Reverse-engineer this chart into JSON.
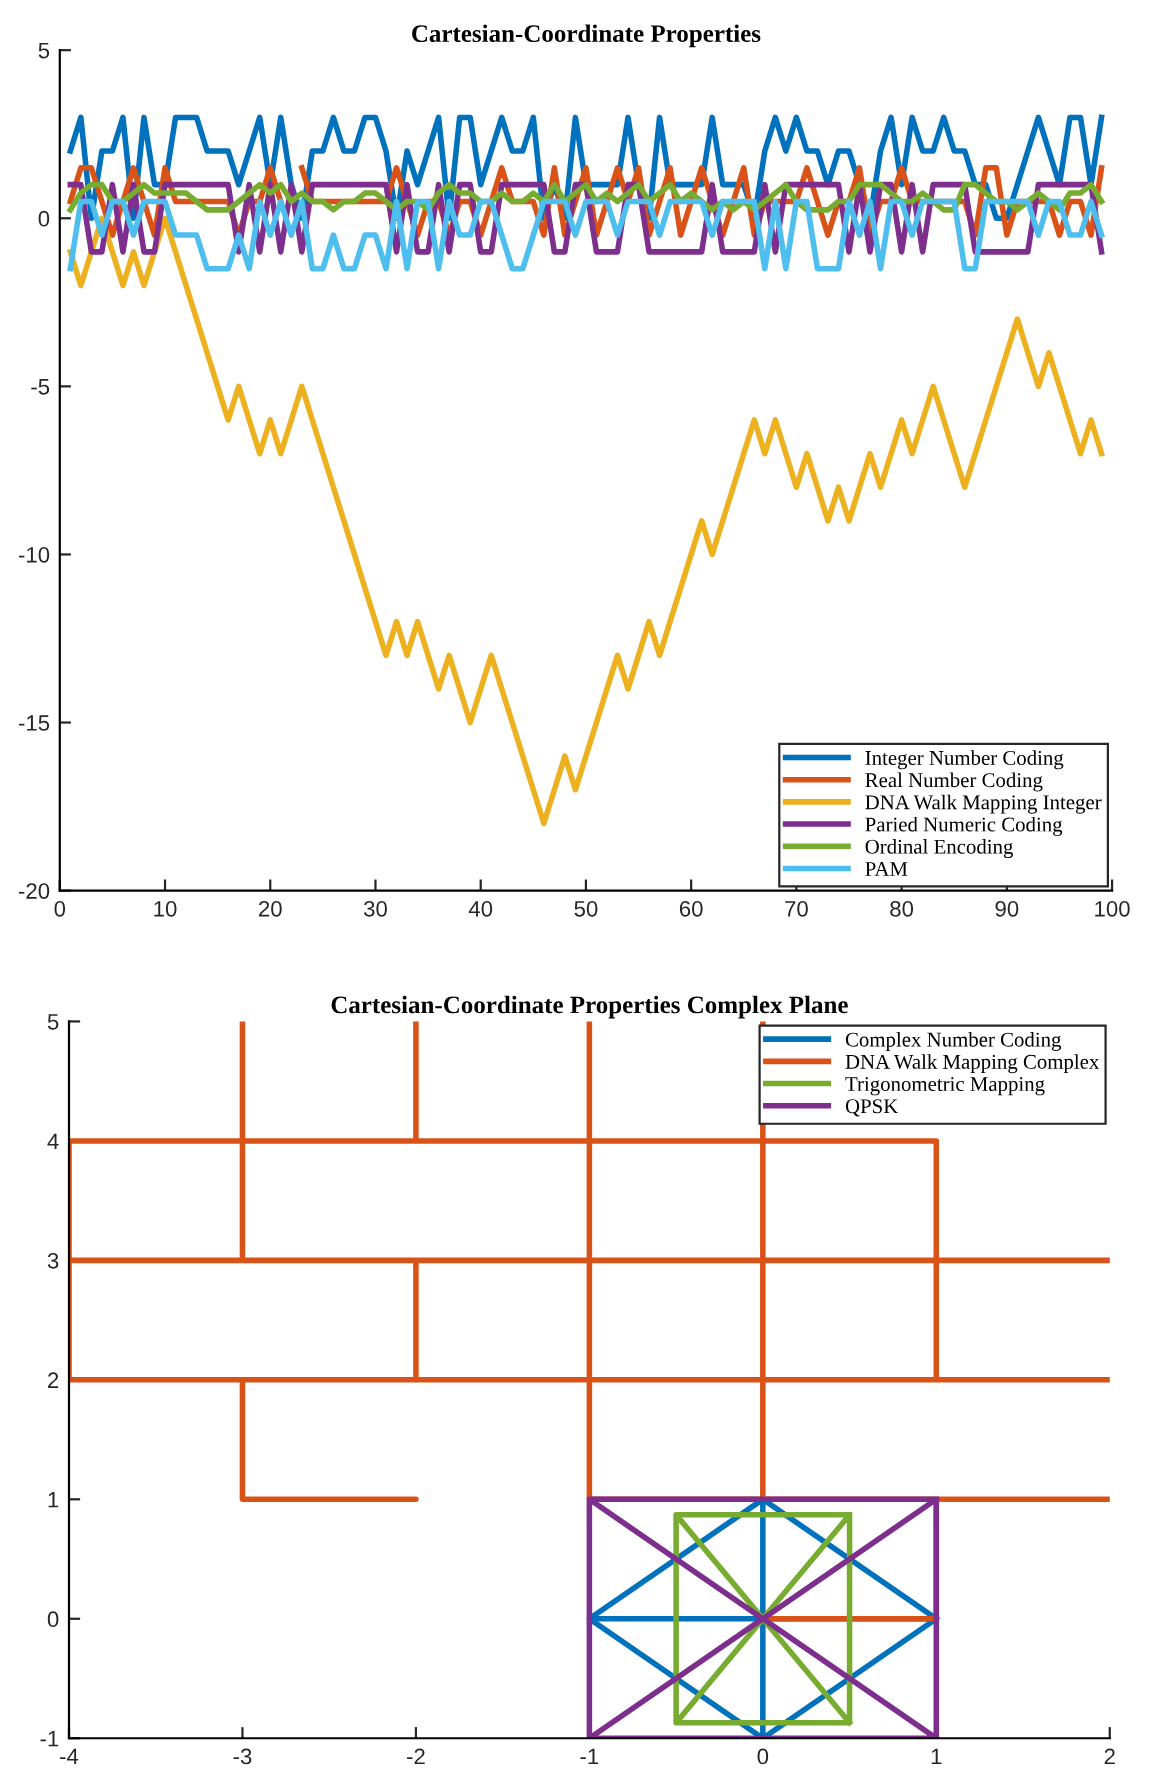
{
  "chart_data": [
    {
      "type": "line",
      "title": "Cartesian-Coordinate Properties",
      "x": [
        1,
        2,
        3,
        4,
        5,
        6,
        7,
        8,
        9,
        10,
        11,
        12,
        13,
        14,
        15,
        16,
        17,
        18,
        19,
        20,
        21,
        22,
        23,
        24,
        25,
        26,
        27,
        28,
        29,
        30,
        31,
        32,
        33,
        34,
        35,
        36,
        37,
        38,
        39,
        40,
        41,
        42,
        43,
        44,
        45,
        46,
        47,
        48,
        49,
        50,
        51,
        52,
        53,
        54,
        55,
        56,
        57,
        58,
        59,
        60,
        61,
        62,
        63,
        64,
        65,
        66,
        67,
        68,
        69,
        70,
        71,
        72,
        73,
        74,
        75,
        76,
        77,
        78,
        79,
        80,
        81,
        82,
        83,
        84,
        85,
        86,
        87,
        88,
        89,
        90,
        91,
        92,
        93,
        94,
        95,
        96,
        97,
        98,
        99
      ],
      "xlim": [
        0,
        100
      ],
      "xticks": [
        0,
        10,
        20,
        30,
        40,
        50,
        60,
        70,
        80,
        90,
        100
      ],
      "ylim": [
        -20,
        5
      ],
      "yticks": [
        -20,
        -15,
        -10,
        -5,
        0,
        5
      ],
      "grid": false,
      "legend": "bottom right",
      "line_style": "solid",
      "marker": "none",
      "series": [
        {
          "name": "Integer Number Coding",
          "color": "#0072bd",
          "values": [
            2,
            3,
            0,
            2,
            2,
            3,
            0,
            3,
            1,
            1,
            3,
            3,
            3,
            2,
            2,
            2,
            1,
            2,
            3,
            1,
            3,
            1,
            0,
            2,
            2,
            3,
            2,
            2,
            3,
            3,
            2,
            0,
            2,
            1,
            2,
            3,
            0,
            3,
            3,
            1,
            2,
            3,
            2,
            2,
            3,
            0,
            1,
            0,
            3,
            1,
            1,
            1,
            1,
            3,
            1,
            0,
            3,
            1,
            1,
            1,
            1,
            3,
            1,
            1,
            1,
            0,
            2,
            3,
            2,
            3,
            2,
            2,
            1,
            2,
            2,
            1,
            0,
            2,
            3,
            1,
            3,
            2,
            2,
            3,
            2,
            2,
            1,
            1,
            0,
            0,
            1,
            2,
            3,
            2,
            1,
            3,
            3,
            1,
            3
          ]
        },
        {
          "name": "Real Number Coding",
          "color": "#d95319",
          "values": [
            0.5,
            1.5,
            1.5,
            0.5,
            -0.5,
            0.5,
            1.5,
            0.5,
            -0.5,
            1.5,
            0.5,
            0.5,
            0.5,
            0.5,
            0.5,
            0.5,
            -0.5,
            0.5,
            0.5,
            1.5,
            0.5,
            null,
            1.5,
            0.5,
            0.5,
            0.5,
            0.5,
            0.5,
            0.5,
            0.5,
            0.5,
            1.5,
            0.5,
            -0.5,
            0.5,
            0.5,
            -0.5,
            0.5,
            0.5,
            -0.5,
            0.5,
            1.5,
            0.5,
            0.5,
            0.5,
            -0.5,
            1.5,
            -0.5,
            0.5,
            1.5,
            -0.5,
            0.5,
            1.5,
            0.5,
            1.5,
            -0.5,
            0.5,
            1.5,
            -0.5,
            0.5,
            1.5,
            0.5,
            -0.5,
            0.5,
            1.5,
            -0.5,
            0.5,
            0.5,
            0.5,
            0.5,
            1.5,
            0.5,
            -0.5,
            0.5,
            0.5,
            1.5,
            -0.5,
            0.5,
            0.5,
            1.5,
            0.5,
            0.5,
            0.5,
            0.5,
            0.5,
            0.5,
            -0.5,
            1.5,
            1.5,
            -0.5,
            0.5,
            0.5,
            0.5,
            0.5,
            -0.5,
            0.5,
            0.5,
            -0.5,
            1.5
          ]
        },
        {
          "name": "DNA Walk Mapping Integer",
          "color": "#edb120",
          "values": [
            -1,
            -2,
            -1,
            0,
            -1,
            -2,
            -1,
            -2,
            -1,
            0,
            -1,
            -2,
            -3,
            -4,
            -5,
            -6,
            -5,
            -6,
            -7,
            -6,
            -7,
            -6,
            -5,
            -6,
            -7,
            -8,
            -9,
            -10,
            -11,
            -12,
            -13,
            -12,
            -13,
            -12,
            -13,
            -14,
            -13,
            -14,
            -15,
            -14,
            -13,
            -14,
            -15,
            -16,
            -17,
            -18,
            -17,
            -16,
            -17,
            -16,
            -15,
            -14,
            -13,
            -14,
            -13,
            -12,
            -13,
            -12,
            -11,
            -10,
            -9,
            -10,
            -9,
            -8,
            -7,
            -6,
            -7,
            -6,
            -7,
            -8,
            -7,
            -8,
            -9,
            -8,
            -9,
            -8,
            -7,
            -8,
            -7,
            -6,
            -7,
            -6,
            -5,
            -6,
            -7,
            -8,
            -7,
            -6,
            -5,
            -4,
            -3,
            -4,
            -5,
            -4,
            -5,
            -6,
            -7,
            -6,
            -7
          ]
        },
        {
          "name": "Paried Numeric Coding",
          "color": "#7e2f8e",
          "values": [
            1,
            1,
            -1,
            -1,
            1,
            -1,
            1,
            -1,
            -1,
            1,
            1,
            1,
            1,
            1,
            1,
            1,
            -1,
            1,
            -1,
            1,
            -1,
            1,
            -1,
            1,
            1,
            1,
            1,
            1,
            1,
            1,
            1,
            -1,
            1,
            -1,
            -1,
            1,
            -1,
            1,
            1,
            -1,
            -1,
            1,
            1,
            1,
            1,
            1,
            -1,
            -1,
            1,
            1,
            -1,
            -1,
            -1,
            1,
            1,
            -1,
            -1,
            -1,
            -1,
            -1,
            -1,
            1,
            -1,
            -1,
            -1,
            -1,
            1,
            -1,
            1,
            1,
            1,
            1,
            1,
            1,
            -1,
            1,
            -1,
            1,
            1,
            -1,
            1,
            -1,
            1,
            1,
            1,
            1,
            -1,
            -1,
            -1,
            -1,
            -1,
            -1,
            1,
            1,
            1,
            1,
            1,
            1,
            -1
          ]
        },
        {
          "name": "Ordinal Encoding",
          "color": "#77ac30",
          "values": [
            0.25,
            0.75,
            1,
            1,
            0.5,
            0.5,
            0.75,
            1,
            0.75,
            0.75,
            0.75,
            0.75,
            0.5,
            0.25,
            0.25,
            0.25,
            0.5,
            0.75,
            1,
            0.75,
            1,
            0.5,
            0.75,
            0.5,
            0.5,
            0.25,
            0.5,
            0.5,
            0.75,
            0.75,
            0.5,
            0.25,
            0.5,
            0.5,
            0.25,
            0.75,
            1,
            0.75,
            0.75,
            0.5,
            0.5,
            0.75,
            0.5,
            0.5,
            0.75,
            0.5,
            1,
            0.5,
            0.75,
            1,
            0.5,
            0.75,
            0.5,
            0.75,
            1,
            0.5,
            0.75,
            1,
            0.5,
            0.75,
            0.5,
            0.25,
            0.5,
            0.25,
            0.5,
            0.25,
            0.5,
            0.75,
            1,
            0.5,
            0.25,
            0.25,
            0.25,
            0.5,
            0.5,
            1,
            1,
            1,
            0.75,
            0.5,
            0.5,
            0.75,
            0.5,
            0.25,
            0.25,
            1,
            1,
            0.75,
            0.5,
            0.5,
            0.25,
            0.5,
            0.75,
            0.5,
            0.25,
            0.75,
            0.75,
            1,
            0.5
          ]
        },
        {
          "name": "PAM",
          "color": "#4dbeee",
          "values": [
            -1.5,
            0.5,
            0.5,
            -0.5,
            0.5,
            0.5,
            -0.5,
            0.5,
            0.5,
            0.5,
            -0.5,
            -0.5,
            -0.5,
            -1.5,
            -1.5,
            -1.5,
            -0.5,
            -1.5,
            0.5,
            -0.5,
            0.5,
            -0.5,
            0.5,
            -1.5,
            -1.5,
            -0.5,
            -1.5,
            -1.5,
            -0.5,
            -0.5,
            -1.5,
            0.5,
            -1.5,
            0.5,
            0.5,
            -1.5,
            0.5,
            -0.5,
            -0.5,
            0.5,
            0.5,
            -0.5,
            -1.5,
            -1.5,
            -0.5,
            0.5,
            0.5,
            0.5,
            -0.5,
            0.5,
            0.5,
            0.5,
            -0.5,
            0.5,
            0.5,
            0.5,
            -0.5,
            0.5,
            0.5,
            0.5,
            0.5,
            -0.5,
            0.5,
            0.5,
            0.5,
            0.5,
            -1.5,
            0.5,
            -1.5,
            0.5,
            0.5,
            -1.5,
            -1.5,
            -1.5,
            0.5,
            -0.5,
            0.5,
            -1.5,
            0.5,
            0.5,
            -0.5,
            0.5,
            0.5,
            0.5,
            0.5,
            -1.5,
            -1.5,
            0.5,
            0.5,
            0.5,
            0.5,
            0.5,
            -0.5,
            0.5,
            0.5,
            -0.5,
            -0.5,
            0.5,
            -0.5
          ]
        }
      ]
    },
    {
      "type": "line",
      "title": "Cartesian-Coordinate Properties Complex Plane",
      "xlim": [
        -4,
        2
      ],
      "xticks": [
        -4,
        -3,
        -2,
        -1,
        0,
        1,
        2
      ],
      "ylim": [
        -1,
        5
      ],
      "yticks": [
        -1,
        0,
        1,
        2,
        3,
        4,
        5
      ],
      "grid": false,
      "legend": "top right",
      "line_style": "solid",
      "marker": "none",
      "series": [
        {
          "name": "Complex Number Coding",
          "color": "#0072bd",
          "x": [
            1,
            0,
            -1,
            0,
            1,
            -1,
            0,
            0
          ],
          "values": [
            0,
            1,
            0,
            -1,
            0,
            0,
            1,
            -1
          ]
        },
        {
          "name": "DNA Walk Mapping Complex",
          "color": "#d95319",
          "x": [
            0,
            1,
            1,
            2,
            1,
            0,
            -1,
            -1,
            -1,
            -1,
            -2,
            -3,
            -3,
            -2,
            -3,
            -3,
            -4,
            -4,
            -3,
            -2,
            -2,
            -2,
            -1,
            0,
            1,
            2,
            1,
            1,
            2,
            1,
            0,
            -1,
            0,
            0,
            0,
            0,
            0,
            0,
            0,
            -1,
            -1,
            -1,
            -1,
            -1,
            -2,
            -2,
            -2,
            -3,
            -3,
            -3,
            -3,
            -3,
            -4,
            -4,
            -4,
            -3,
            -2,
            -1,
            0,
            1,
            1
          ],
          "values": [
            0,
            0,
            1,
            1,
            1,
            1,
            1,
            2,
            3,
            2,
            2,
            2,
            1,
            1,
            1,
            2,
            2,
            3,
            3,
            3,
            2,
            3,
            3,
            3,
            3,
            3,
            3,
            2,
            2,
            2,
            2,
            2,
            2,
            1,
            2,
            3,
            4,
            5,
            4,
            4,
            3,
            4,
            5,
            4,
            4,
            5,
            4,
            4,
            5,
            4,
            3,
            4,
            4,
            3,
            4,
            4,
            4,
            4,
            4,
            4,
            3
          ]
        },
        {
          "name": "Trigonometric Mapping",
          "color": "#77ac30",
          "x": [
            0.5,
            -0.5,
            -0.5,
            0.5,
            0.5,
            -0.5,
            -0.5,
            0.5
          ],
          "values": [
            0.87,
            0.87,
            -0.87,
            -0.87,
            0.87,
            -0.87,
            0.87,
            -0.87
          ]
        },
        {
          "name": "QPSK",
          "color": "#7e2f8e",
          "x": [
            1,
            -1,
            -1,
            1,
            1,
            -1,
            -1,
            1
          ],
          "values": [
            1,
            1,
            -1,
            -1,
            1,
            -1,
            1,
            -1
          ]
        }
      ]
    }
  ]
}
